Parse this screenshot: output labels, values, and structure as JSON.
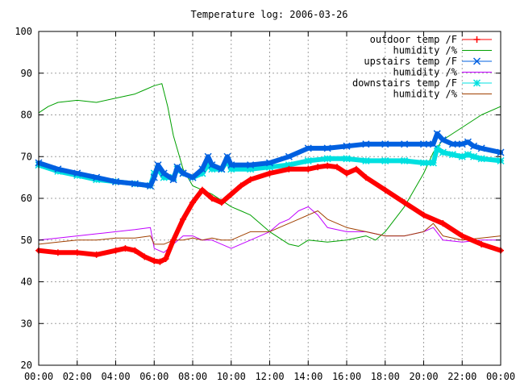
{
  "chart_data": {
    "type": "line",
    "title": "Temperature log: 2006-03-26",
    "xlabel": "",
    "ylabel": "",
    "x_ticks": [
      "00:00",
      "02:00",
      "04:00",
      "06:00",
      "08:00",
      "10:00",
      "12:00",
      "14:00",
      "16:00",
      "18:00",
      "20:00",
      "22:00",
      "00:00"
    ],
    "xlim": [
      0,
      24
    ],
    "ylim": [
      20,
      100
    ],
    "y_ticks": [
      20,
      30,
      40,
      50,
      60,
      70,
      80,
      90,
      100
    ],
    "grid": true,
    "legend_position": "top-right",
    "series": [
      {
        "name": "outdoor temp /F",
        "color": "#ff0000",
        "marker": "plus",
        "style": "thick",
        "x": [
          0,
          1,
          2,
          3,
          4,
          4.5,
          5,
          5.5,
          6,
          6.3,
          6.6,
          7,
          7.5,
          8,
          8.5,
          9,
          9.5,
          10,
          10.5,
          11,
          12,
          13,
          14,
          14.5,
          15,
          15.5,
          16,
          16.5,
          17,
          18,
          19,
          20,
          21,
          22,
          23,
          24
        ],
        "y": [
          47.5,
          47,
          47,
          46.5,
          47.5,
          48,
          47.5,
          46,
          45,
          44.8,
          45.5,
          50,
          55,
          59,
          62,
          60,
          59,
          61,
          63,
          64.5,
          66,
          67,
          67,
          67.5,
          67.8,
          67.5,
          66,
          67,
          65,
          62,
          59,
          56,
          54,
          51,
          49,
          47.5
        ]
      },
      {
        "name": "humidity /%",
        "color": "#00a000",
        "marker": "none",
        "style": "thin",
        "x": [
          0,
          0.5,
          1,
          2,
          3,
          4,
          5,
          5.5,
          6,
          6.4,
          6.7,
          7,
          7.5,
          8,
          8.5,
          9,
          9.5,
          10,
          10.5,
          11,
          12,
          13,
          13.5,
          14,
          15,
          16,
          17,
          17.5,
          18,
          19,
          20,
          20.5,
          21,
          22,
          23,
          24
        ],
        "y": [
          80.5,
          82,
          83,
          83.5,
          83,
          84,
          85,
          86,
          87,
          87.5,
          82,
          75,
          67,
          63,
          62,
          61,
          59.5,
          58,
          57,
          56,
          52,
          49,
          48.5,
          50,
          49.5,
          50,
          51,
          50,
          52,
          58,
          66,
          71,
          74,
          77,
          80,
          82
        ]
      },
      {
        "name": "upstairs temp /F",
        "color": "#0060e0",
        "marker": "x",
        "style": "thick",
        "x": [
          0,
          1,
          2,
          3,
          4,
          5,
          5.8,
          6,
          6.2,
          6.5,
          7,
          7.2,
          7.5,
          8,
          8.5,
          8.8,
          9,
          9.5,
          9.8,
          10,
          11,
          12,
          13,
          14,
          15,
          16,
          17,
          18,
          19,
          20,
          20.5,
          20.7,
          21,
          21.5,
          22,
          22.3,
          22.6,
          23,
          24
        ],
        "y": [
          68.5,
          67,
          66,
          65,
          64,
          63.5,
          63,
          65,
          68,
          66,
          64.5,
          67.5,
          66,
          65,
          67,
          70,
          68,
          67,
          70,
          68,
          68,
          68.5,
          70,
          72,
          72,
          72.5,
          73,
          73,
          73,
          73,
          73,
          75.5,
          74,
          73,
          73,
          73.5,
          72.5,
          72,
          71
        ]
      },
      {
        "name": "humidity /%",
        "color": "#c000ff",
        "marker": "none",
        "style": "thin",
        "x": [
          0,
          1,
          2,
          3,
          4,
          5,
          5.8,
          6,
          6.5,
          7,
          7.5,
          8,
          8.5,
          9,
          9.5,
          10,
          10.5,
          11,
          12,
          12.5,
          13,
          13.5,
          14,
          14.5,
          15,
          16,
          17,
          18,
          19,
          20,
          20.5,
          21,
          22,
          23,
          24
        ],
        "y": [
          50,
          50.5,
          51,
          51.5,
          52,
          52.5,
          53,
          48,
          47,
          49,
          51,
          51,
          50,
          50,
          49,
          48,
          49,
          50,
          52,
          54,
          55,
          57,
          58,
          56,
          53,
          52,
          52,
          51,
          51,
          52,
          53,
          50,
          49.5,
          50,
          50
        ]
      },
      {
        "name": "downstairs temp /F",
        "color": "#00e0e0",
        "marker": "star",
        "style": "thick",
        "x": [
          0,
          1,
          2,
          3,
          4,
          5,
          5.8,
          6,
          6.2,
          6.5,
          7,
          7.2,
          7.5,
          8,
          8.5,
          8.8,
          9,
          9.5,
          9.8,
          10,
          11,
          12,
          13,
          14,
          15,
          16,
          17,
          18,
          19,
          20,
          20.5,
          20.7,
          21,
          21.5,
          22,
          22.3,
          22.6,
          23,
          24
        ],
        "y": [
          68,
          66.5,
          65.5,
          64.5,
          64,
          63.5,
          63,
          66,
          67,
          65,
          65,
          67,
          66,
          65,
          66,
          68,
          67,
          67,
          69,
          67,
          67,
          67.5,
          68,
          69,
          69.5,
          69.5,
          69,
          69,
          69,
          68.5,
          68.5,
          72,
          71,
          70.5,
          70,
          70.5,
          70,
          69.5,
          69
        ]
      },
      {
        "name": "humidity /%",
        "color": "#a04000",
        "marker": "none",
        "style": "thin",
        "x": [
          0,
          1,
          2,
          3,
          4,
          5,
          5.8,
          6,
          6.5,
          7,
          7.5,
          8,
          8.5,
          9,
          9.5,
          10,
          10.5,
          11,
          12,
          12.5,
          13,
          13.5,
          14,
          14.5,
          15,
          16,
          17,
          18,
          19,
          20,
          20.5,
          21,
          22,
          23,
          24
        ],
        "y": [
          49,
          49.5,
          50,
          50,
          50.5,
          50.5,
          51,
          49,
          49,
          50,
          50,
          50.5,
          50,
          50.5,
          50,
          50,
          51,
          52,
          52,
          53,
          54,
          55,
          56,
          57,
          55,
          53,
          52,
          51,
          51,
          52,
          54,
          51,
          50,
          50.5,
          51
        ]
      }
    ]
  }
}
